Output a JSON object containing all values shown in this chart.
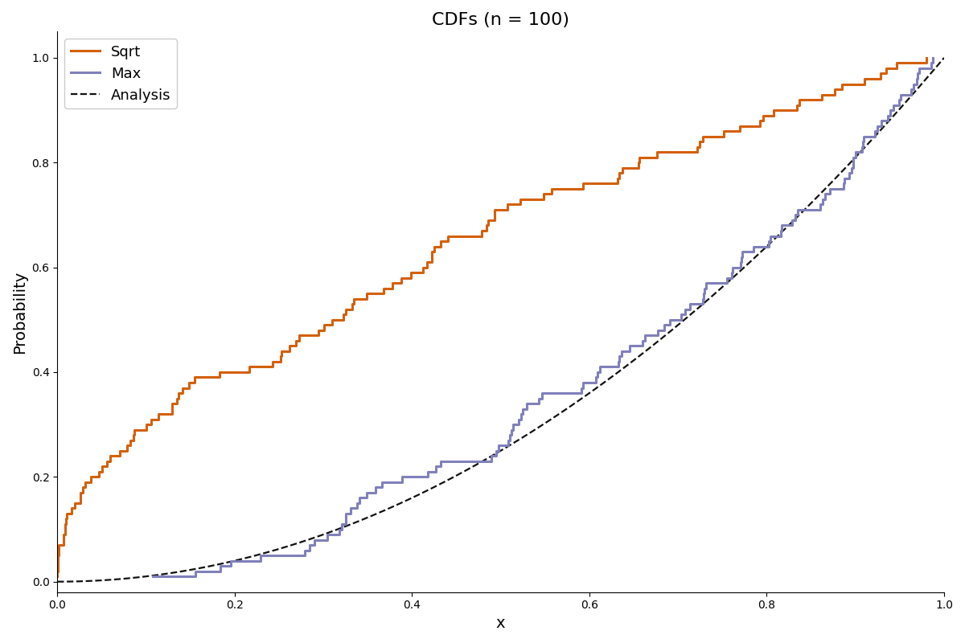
{
  "n": 100,
  "seed": 42,
  "title": "CDFs (n = 100)",
  "xlabel": "x",
  "ylabel": "Probability",
  "max_color": "#8080bb",
  "sqrt_color": "#d4600a",
  "analysis_color": "#111111",
  "max_label": "Max",
  "sqrt_label": "Sqrt",
  "analysis_label": "Analysis",
  "analysis_power": 2.0,
  "max_power": 2,
  "sqrt_power": 0.5,
  "xlim": [
    0.0,
    1.0
  ],
  "ylim": [
    -0.02,
    1.05
  ],
  "linewidth": 2.2,
  "analysis_linewidth": 1.6,
  "legend_loc": "upper left",
  "legend_fontsize": 13,
  "title_fontsize": 16,
  "axis_label_fontsize": 14
}
